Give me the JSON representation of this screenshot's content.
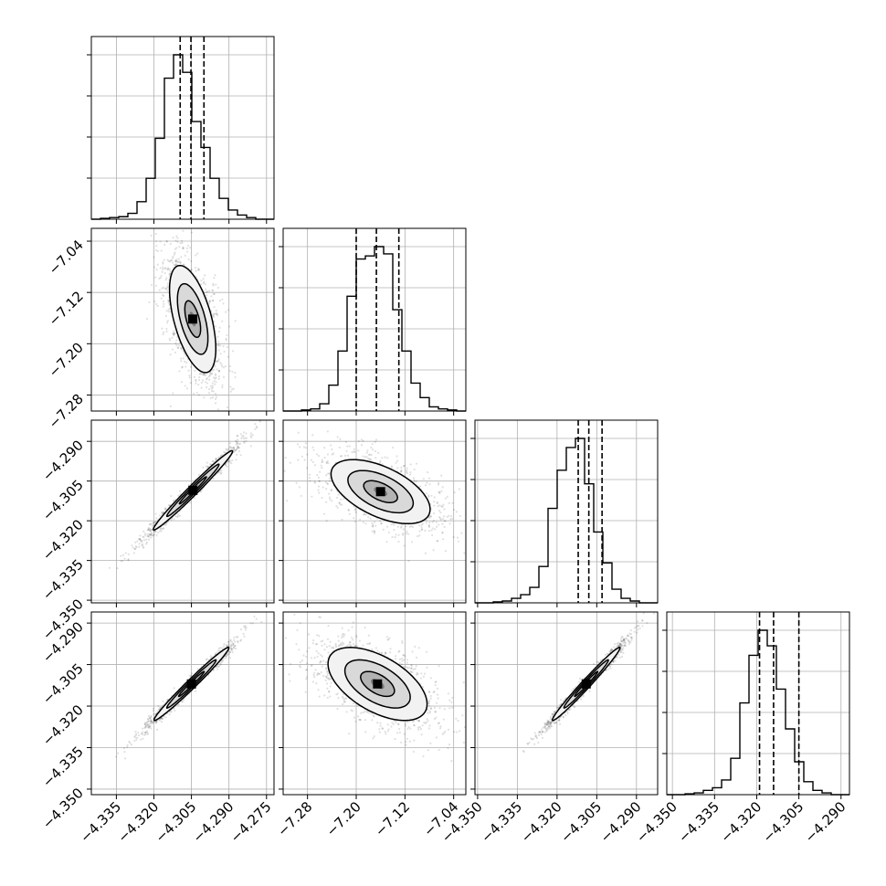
{
  "chart_data": {
    "type": "corner",
    "grid": true,
    "colors": {
      "line": "#000000",
      "grid": "#b0b0b0",
      "points": "#000000"
    },
    "parameters": [
      {
        "xlim": [
          -4.345,
          -4.272
        ],
        "ticks": [
          -4.335,
          -4.32,
          -4.305,
          -4.29,
          -4.275
        ],
        "tick_labels": [
          "−4.335",
          "−4.320",
          "−4.305",
          "−4.290",
          "−4.275"
        ]
      },
      {
        "xlim": [
          -7.32,
          -7.02
        ],
        "ticks": [
          -7.28,
          -7.2,
          -7.12,
          -7.04
        ],
        "tick_labels": [
          "−7.28",
          "−7.20",
          "−7.12",
          "−7.04"
        ]
      },
      {
        "xlim": [
          -4.351,
          -4.282
        ],
        "ticks": [
          -4.35,
          -4.335,
          -4.32,
          -4.305,
          -4.29
        ],
        "tick_labels": [
          "−4.350",
          "−4.335",
          "−4.320",
          "−4.305",
          "−4.290"
        ]
      },
      {
        "xlim": [
          -4.352,
          -4.287
        ],
        "ticks": [
          -4.35,
          -4.335,
          -4.32,
          -4.305,
          -4.29
        ],
        "tick_labels": [
          "−4.350",
          "−4.335",
          "−4.320",
          "−4.305",
          "−4.290"
        ]
      }
    ],
    "row_ylim": {
      "1": [
        -7.305,
        -7.02
      ],
      "2": [
        -4.351,
        -4.282
      ],
      "3": [
        -4.352,
        -4.286
      ]
    },
    "row_y_ticks": {
      "1": {
        "ticks": [
          -7.28,
          -7.2,
          -7.12,
          -7.04
        ],
        "tick_labels": [
          "−7.28",
          "−7.20",
          "−7.12",
          "−7.04"
        ]
      },
      "2": {
        "ticks": [
          -4.35,
          -4.335,
          -4.32,
          -4.305,
          -4.29
        ],
        "tick_labels": [
          "−4.350",
          "−4.335",
          "−4.320",
          "−4.305",
          "−4.290"
        ]
      },
      "3": {
        "ticks": [
          -4.35,
          -4.335,
          -4.32,
          -4.305,
          -4.29
        ],
        "tick_labels": [
          "−4.350",
          "−4.335",
          "−4.320",
          "−4.305",
          "−4.290"
        ]
      }
    },
    "histograms": [
      {
        "edges_start": -4.345,
        "bin_width": 0.00365,
        "counts": [
          0,
          1,
          2,
          3,
          7,
          21,
          49,
          97,
          169,
          197,
          176,
          117,
          86,
          49,
          25,
          11,
          5,
          2,
          0,
          0
        ],
        "quantiles": [
          -4.3095,
          -4.3052,
          -4.3
        ]
      },
      {
        "edges_start": -7.32,
        "bin_width": 0.015,
        "counts": [
          0,
          0,
          1,
          2,
          7,
          25,
          58,
          111,
          147,
          150,
          159,
          152,
          98,
          58,
          27,
          13,
          4,
          2,
          1,
          0
        ],
        "quantiles": [
          -7.2,
          -7.1669,
          -7.13
        ]
      },
      {
        "edges_start": -4.351,
        "bin_width": 0.00345,
        "counts": [
          0,
          0,
          1,
          2,
          5,
          9,
          17,
          40,
          104,
          146,
          171,
          181,
          131,
          78,
          44,
          15,
          5,
          2,
          0,
          0
        ],
        "quantiles": [
          -4.312,
          -4.308,
          -4.303
        ]
      },
      {
        "edges_start": -4.352,
        "bin_width": 0.00325,
        "counts": [
          0,
          0,
          1,
          2,
          5,
          8,
          17,
          42,
          106,
          161,
          190,
          172,
          122,
          76,
          38,
          15,
          5,
          2,
          0,
          0
        ],
        "quantiles": [
          -4.319,
          -4.314,
          -4.305
        ]
      }
    ],
    "pairs": [
      {
        "row": 1,
        "col": 0,
        "mean": [
          -4.3045,
          -7.1615
        ],
        "sd": [
          0.0042,
          0.038
        ],
        "rho": -0.55,
        "contours": [
          0.3,
          0.75,
          1.45,
          2.2
        ]
      },
      {
        "row": 2,
        "col": 0,
        "mean": [
          -4.3044,
          -4.3085
        ],
        "sd": [
          0.0072,
          0.0068
        ],
        "rho": 0.985,
        "contours": [
          0.3,
          0.75,
          1.45,
          2.2
        ]
      },
      {
        "row": 2,
        "col": 1,
        "mean": [
          -7.16,
          -4.309
        ],
        "sd": [
          0.037,
          0.0055
        ],
        "rho": -0.55,
        "contours": [
          0.3,
          0.75,
          1.45,
          2.2
        ]
      },
      {
        "row": 3,
        "col": 0,
        "mean": [
          -4.305,
          -4.312
        ],
        "sd": [
          0.0068,
          0.006
        ],
        "rho": 0.985,
        "contours": [
          0.3,
          0.75,
          1.45,
          2.2
        ]
      },
      {
        "row": 3,
        "col": 1,
        "mean": [
          -7.165,
          -4.312
        ],
        "sd": [
          0.037,
          0.006
        ],
        "rho": -0.55,
        "contours": [
          0.3,
          0.75,
          1.45,
          2.2
        ]
      },
      {
        "row": 3,
        "col": 2,
        "mean": [
          -4.309,
          -4.312
        ],
        "sd": [
          0.0058,
          0.006
        ],
        "rho": 0.985,
        "contours": [
          0.3,
          0.75,
          1.45,
          2.2
        ]
      }
    ]
  }
}
